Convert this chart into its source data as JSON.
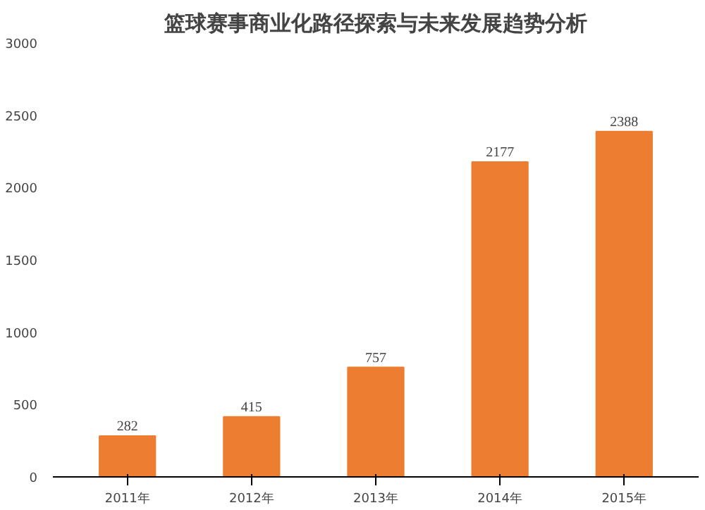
{
  "chart_data": {
    "type": "bar",
    "title": "篮球赛事商业化路径探索与未来发展趋势分析",
    "categories": [
      "2011年",
      "2012年",
      "2013年",
      "2014年",
      "2015年"
    ],
    "values": [
      282,
      415,
      757,
      2177,
      2388
    ],
    "color": "#ed7d31",
    "ylim": [
      0,
      3000
    ],
    "yticks": [
      0,
      500,
      1000,
      1500,
      2000,
      2500,
      3000
    ],
    "data_labels": true
  }
}
